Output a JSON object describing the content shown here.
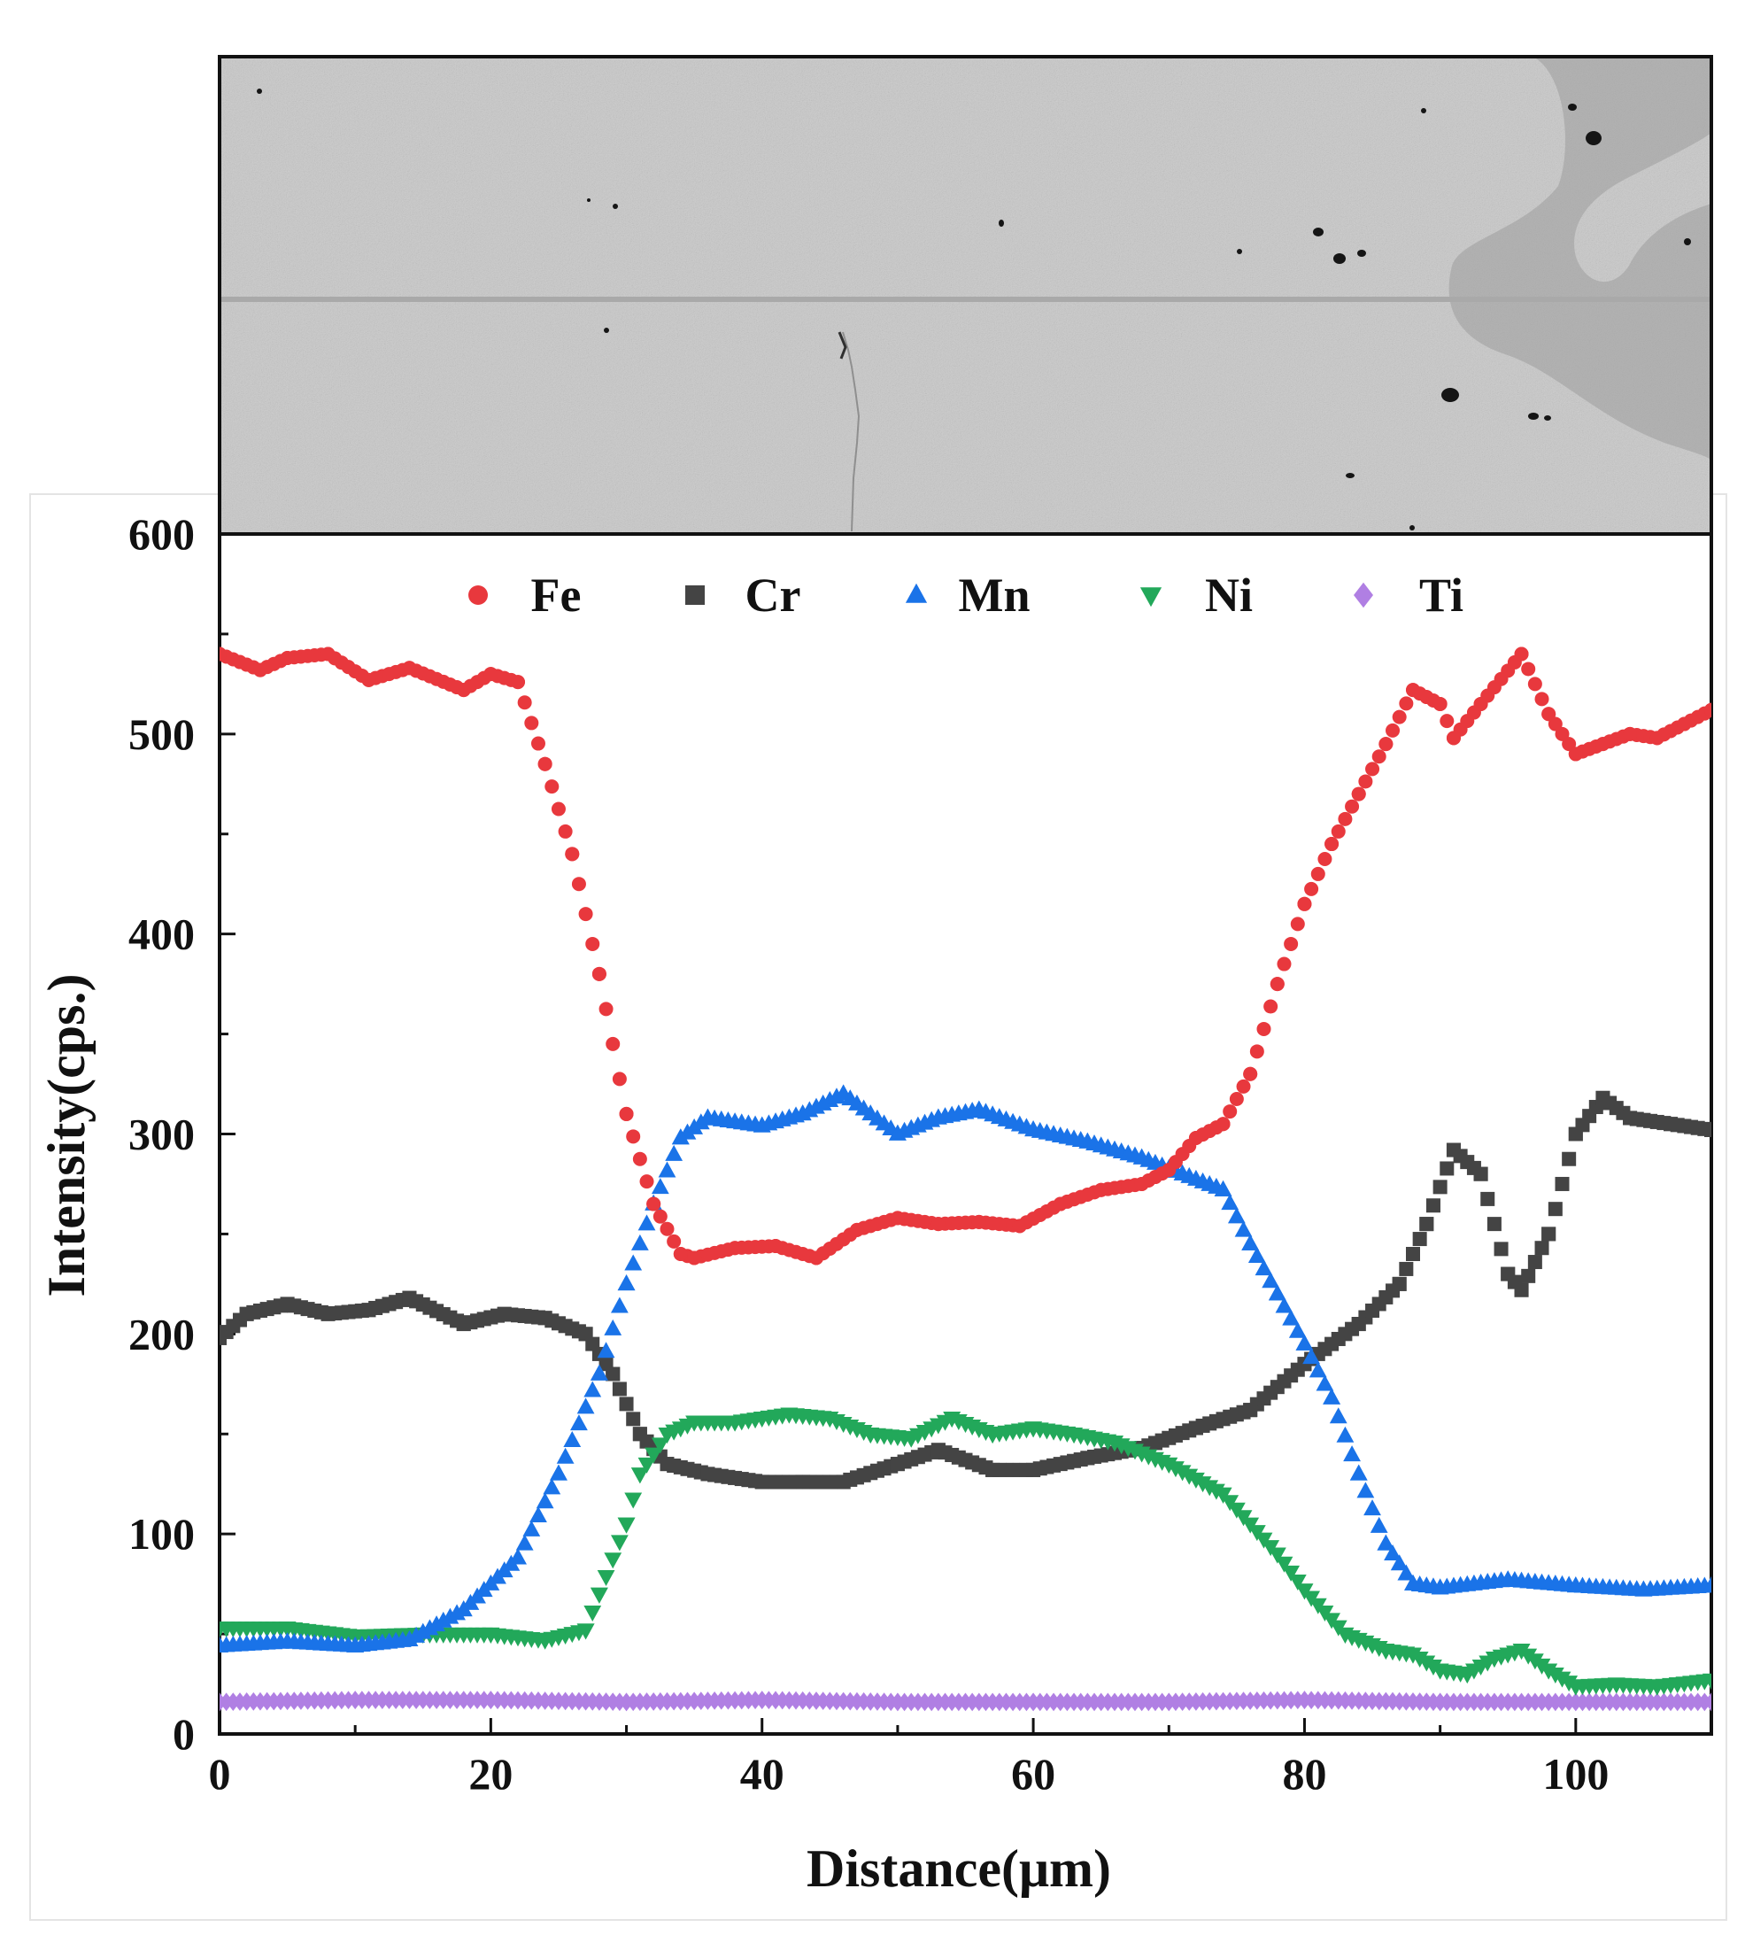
{
  "chart_data": {
    "type": "scatter",
    "title": "",
    "xlabel": "Distance(μm)",
    "ylabel": "Intensity(cps.)",
    "xlim": [
      0,
      110
    ],
    "ylim": [
      0,
      600
    ],
    "xticks": [
      0,
      20,
      40,
      60,
      80,
      100
    ],
    "yticks": [
      0,
      100,
      200,
      300,
      400,
      500,
      600
    ],
    "grid": false,
    "legend_position": "top",
    "sem_image": {
      "description_free": true,
      "colors": {
        "background": "#c9c9c9",
        "scan_line": "#a9a9a9",
        "phase": "#9d9d9d",
        "pore": "#151515"
      }
    },
    "series": [
      {
        "name": "Fe",
        "marker": "circle",
        "color": "#e8383d",
        "x": [
          0,
          3,
          5,
          8,
          11,
          14,
          18,
          20,
          22,
          24,
          26,
          28,
          30,
          32,
          34,
          35,
          38,
          41,
          44,
          47,
          50,
          53,
          56,
          59,
          62,
          65,
          68,
          70,
          72,
          74,
          76,
          78,
          80,
          82,
          84,
          86,
          88,
          90,
          91,
          93,
          96,
          98,
          100,
          102,
          104,
          106,
          108,
          110
        ],
        "y": [
          540,
          532,
          538,
          540,
          527,
          533,
          522,
          530,
          526,
          485,
          440,
          380,
          310,
          265,
          240,
          238,
          243,
          244,
          238,
          252,
          258,
          255,
          256,
          254,
          265,
          272,
          275,
          282,
          298,
          305,
          330,
          375,
          415,
          445,
          470,
          495,
          522,
          515,
          498,
          515,
          540,
          510,
          490,
          495,
          500,
          498,
          505,
          512
        ]
      },
      {
        "name": "Cr",
        "marker": "square",
        "color": "#444444",
        "x": [
          0,
          2,
          5,
          8,
          11,
          14,
          18,
          21,
          24,
          27,
          29,
          31,
          33,
          36,
          40,
          43,
          46,
          50,
          53,
          57,
          60,
          64,
          68,
          72,
          76,
          80,
          84,
          87,
          89,
          91,
          93,
          95,
          96,
          98,
          100,
          102,
          104,
          107,
          110
        ],
        "y": [
          198,
          210,
          215,
          210,
          212,
          218,
          205,
          210,
          208,
          200,
          180,
          150,
          135,
          130,
          126,
          126,
          126,
          135,
          142,
          132,
          132,
          138,
          143,
          153,
          162,
          185,
          205,
          225,
          255,
          292,
          280,
          230,
          222,
          250,
          300,
          318,
          308,
          305,
          302
        ]
      },
      {
        "name": "Mn",
        "marker": "triangle-up",
        "color": "#1a73e8",
        "x": [
          0,
          5,
          10,
          14,
          18,
          22,
          25,
          28,
          30,
          32,
          34,
          36,
          40,
          43,
          46,
          50,
          53,
          56,
          60,
          64,
          68,
          71,
          74,
          76,
          78,
          80,
          82,
          84,
          86,
          88,
          90,
          95,
          100,
          105,
          110
        ],
        "y": [
          44,
          46,
          44,
          47,
          62,
          88,
          130,
          180,
          225,
          265,
          298,
          308,
          304,
          310,
          320,
          300,
          308,
          312,
          302,
          296,
          288,
          280,
          272,
          245,
          220,
          195,
          168,
          130,
          95,
          75,
          73,
          77,
          74,
          72,
          74
        ]
      },
      {
        "name": "Ni",
        "marker": "triangle-down",
        "color": "#22a85a",
        "x": [
          0,
          5,
          10,
          15,
          20,
          24,
          27,
          28,
          30,
          31,
          33,
          35,
          38,
          42,
          45,
          48,
          51,
          54,
          57,
          60,
          63,
          66,
          70,
          74,
          78,
          80,
          83,
          86,
          88,
          90,
          92,
          94,
          96,
          98,
          100,
          103,
          106,
          110
        ],
        "y": [
          53,
          53,
          49,
          50,
          50,
          47,
          52,
          70,
          105,
          130,
          150,
          156,
          156,
          160,
          158,
          150,
          148,
          158,
          150,
          153,
          150,
          146,
          135,
          120,
          90,
          72,
          50,
          42,
          40,
          32,
          30,
          38,
          42,
          32,
          24,
          25,
          24,
          27
        ]
      },
      {
        "name": "Ti",
        "marker": "diamond",
        "color": "#b07fe3",
        "x": [
          0,
          10,
          20,
          30,
          40,
          50,
          60,
          70,
          80,
          90,
          100,
          110
        ],
        "y": [
          16,
          17,
          17,
          16,
          17,
          16,
          16,
          16,
          17,
          16,
          16,
          16
        ]
      }
    ]
  }
}
